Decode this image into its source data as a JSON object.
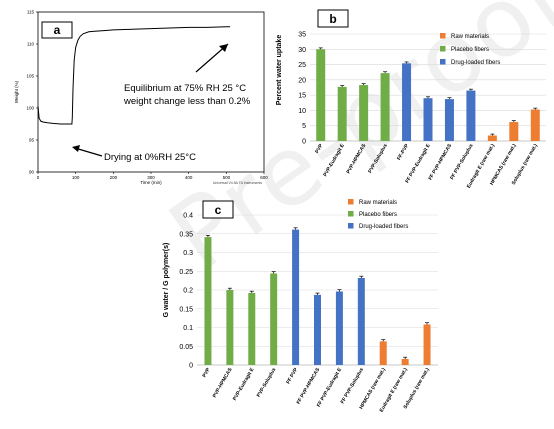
{
  "panel_a": {
    "label": "a",
    "annotation_drying": "Drying at 0%RH 25°C",
    "annotation_eq1": "Equilibrium at 75% RH 25 °C",
    "annotation_eq2": "weight change less than 0.2%",
    "instrument_note": "Universal V4.5A TA Instruments",
    "chart_data": {
      "type": "line",
      "xlabel": "Time (min)",
      "ylabel": "Weight (%)",
      "xlim": [
        0,
        600
      ],
      "ylim": [
        90,
        115
      ],
      "x_ticks": [
        0,
        100,
        200,
        300,
        400,
        500,
        600
      ],
      "y_ticks": [
        90,
        95,
        100,
        105,
        110,
        115
      ],
      "x": [
        0,
        3,
        8,
        15,
        25,
        40,
        60,
        80,
        90,
        91,
        93,
        96,
        100,
        106,
        112,
        120,
        135,
        150,
        175,
        200,
        250,
        300,
        350,
        400,
        450,
        500,
        510
      ],
      "y": [
        100.3,
        98.4,
        97.9,
        97.8,
        97.7,
        97.6,
        97.5,
        97.5,
        97.5,
        98.5,
        103,
        107.5,
        109.5,
        110.6,
        111.2,
        111.6,
        111.9,
        112.0,
        112.1,
        112.2,
        112.3,
        112.4,
        112.5,
        112.6,
        112.6,
        112.7,
        112.7
      ]
    }
  },
  "panel_b": {
    "label": "b",
    "legend": [
      {
        "name": "Raw materials",
        "color": "#ED7D31"
      },
      {
        "name": "Placebo fibers",
        "color": "#70AD47"
      },
      {
        "name": "Drug-loaded fibers",
        "color": "#4472C4"
      }
    ],
    "chart_data": {
      "type": "bar",
      "ylabel": "Percent water uptake",
      "ylim": [
        0,
        35
      ],
      "y_ticks": [
        0,
        5,
        10,
        15,
        20,
        25,
        30,
        35
      ],
      "categories": [
        "PVP",
        "PVP-Eudragit E",
        "PVP-HPMCAS",
        "PVP-Soluplus",
        "FF-PVP",
        "FF PVP-Eudragit E",
        "FF PVP-HPMCAS",
        "FF PVP-Soluplus",
        "Eudragit E (raw mat.)",
        "HPMCAS (raw mat.)",
        "Soluplus (raw mat.)"
      ],
      "values": [
        30.0,
        17.7,
        18.3,
        22.2,
        25.4,
        14.0,
        13.7,
        16.5,
        1.8,
        6.2,
        10.3
      ],
      "groups": [
        "Placebo fibers",
        "Placebo fibers",
        "Placebo fibers",
        "Placebo fibers",
        "Drug-loaded fibers",
        "Drug-loaded fibers",
        "Drug-loaded fibers",
        "Drug-loaded fibers",
        "Raw materials",
        "Raw materials",
        "Raw materials"
      ]
    }
  },
  "panel_c": {
    "label": "c",
    "legend": [
      {
        "name": "Raw materials",
        "color": "#ED7D31"
      },
      {
        "name": "Placebo fibers",
        "color": "#70AD47"
      },
      {
        "name": "Drug-loaded fibers",
        "color": "#4472C4"
      }
    ],
    "chart_data": {
      "type": "bar",
      "ylabel": "G water / G polymer(s)",
      "ylim": [
        0,
        0.4
      ],
      "y_ticks": [
        "0",
        "0.05",
        "0.1",
        "0.15",
        "0.2",
        "0.25",
        "0.3",
        "0.35",
        "0.4"
      ],
      "categories": [
        "PVP",
        "PVP-HPMCAS",
        "PVP-Eudragit E",
        "PVP-Soluplus",
        "FF PVP",
        "FF PVP-HPMCAS",
        "FF PVP-Eudragit E",
        "FF PVP-Soluplus",
        "HPMCAS (raw mat.)",
        "Eudragit E (raw mat.)",
        "Soluplus (raw mat.)"
      ],
      "values": [
        0.341,
        0.2,
        0.192,
        0.244,
        0.361,
        0.187,
        0.196,
        0.232,
        0.063,
        0.016,
        0.108
      ],
      "groups": [
        "Placebo fibers",
        "Placebo fibers",
        "Placebo fibers",
        "Placebo fibers",
        "Drug-loaded fibers",
        "Drug-loaded fibers",
        "Drug-loaded fibers",
        "Drug-loaded fibers",
        "Raw materials",
        "Raw materials",
        "Raw materials"
      ]
    }
  },
  "watermark": "Pre-proof"
}
